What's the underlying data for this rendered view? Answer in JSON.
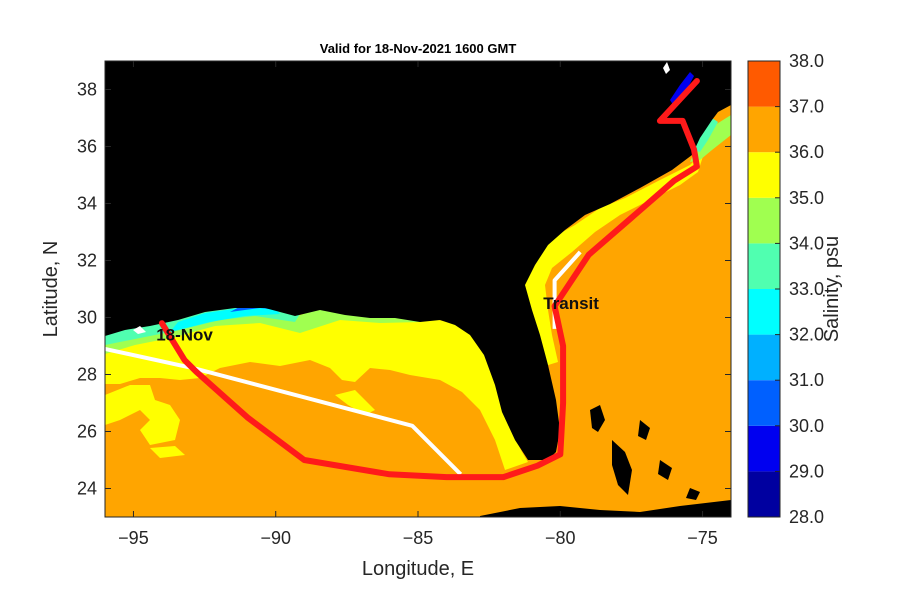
{
  "title": "Valid for 18-Nov-2021 1600 GMT",
  "xlabel": "Longitude, E",
  "ylabel": "Latitude, N",
  "colorbar_label": "Salinity, psu",
  "x_ticks": [
    -95,
    -90,
    -85,
    -80,
    -75
  ],
  "y_ticks": [
    24,
    26,
    28,
    30,
    32,
    34,
    36,
    38
  ],
  "colorbar": {
    "ticks": [
      "28.0",
      "29.0",
      "30.0",
      "31.0",
      "32.0",
      "33.0",
      "34.0",
      "35.0",
      "36.0",
      "37.0",
      "38.0"
    ],
    "range": [
      28,
      38
    ],
    "colors": [
      "#0000a0",
      "#0000f0",
      "#0060ff",
      "#00b0ff",
      "#00ffff",
      "#50ffb0",
      "#a0ff50",
      "#ffff00",
      "#ffa500",
      "#ff5a00"
    ]
  },
  "colors": {
    "land": "#000000",
    "ocean": "#ffa500",
    "shelf": "#ffff00",
    "coastal_low": "#a0ff50",
    "track_red": "#ff1a1a",
    "track_white": "#ffffff"
  },
  "annotations": [
    {
      "text": "18-Nov",
      "lon": -94.2,
      "lat": 29.2
    },
    {
      "text": "Transit",
      "lon": -80.6,
      "lat": 30.3
    }
  ],
  "chart_data": {
    "type": "heatmap",
    "title": "Valid for 18-Nov-2021 1600 GMT",
    "xlabel": "Longitude, E",
    "ylabel": "Latitude, N",
    "xlim": [
      -96,
      -74
    ],
    "ylim": [
      23,
      39
    ],
    "colorbar_label": "Salinity, psu",
    "colorbar_range": [
      28,
      38
    ],
    "red_track": [
      [
        -94.0,
        29.8
      ],
      [
        -93.2,
        28.5
      ],
      [
        -92.8,
        28.1
      ],
      [
        -91.0,
        26.5
      ],
      [
        -89.0,
        25.0
      ],
      [
        -86.0,
        24.5
      ],
      [
        -84.0,
        24.4
      ],
      [
        -82.0,
        24.4
      ],
      [
        -80.8,
        24.8
      ],
      [
        -80.0,
        25.2
      ],
      [
        -79.9,
        27.0
      ],
      [
        -79.9,
        29.0
      ],
      [
        -80.2,
        30.4
      ],
      [
        -79.0,
        32.2
      ],
      [
        -77.5,
        33.5
      ],
      [
        -76.0,
        34.8
      ],
      [
        -75.2,
        35.3
      ],
      [
        -75.3,
        35.9
      ],
      [
        -75.7,
        36.9
      ],
      [
        -76.5,
        36.9
      ],
      [
        -75.2,
        38.3
      ]
    ],
    "white_track": [
      [
        -96.0,
        28.9
      ],
      [
        -92.8,
        28.2
      ],
      [
        -85.2,
        26.2
      ],
      [
        -83.5,
        24.5
      ]
    ],
    "white_track_2": [
      [
        -80.2,
        29.6
      ],
      [
        -80.2,
        31.3
      ],
      [
        -79.3,
        32.3
      ]
    ]
  }
}
